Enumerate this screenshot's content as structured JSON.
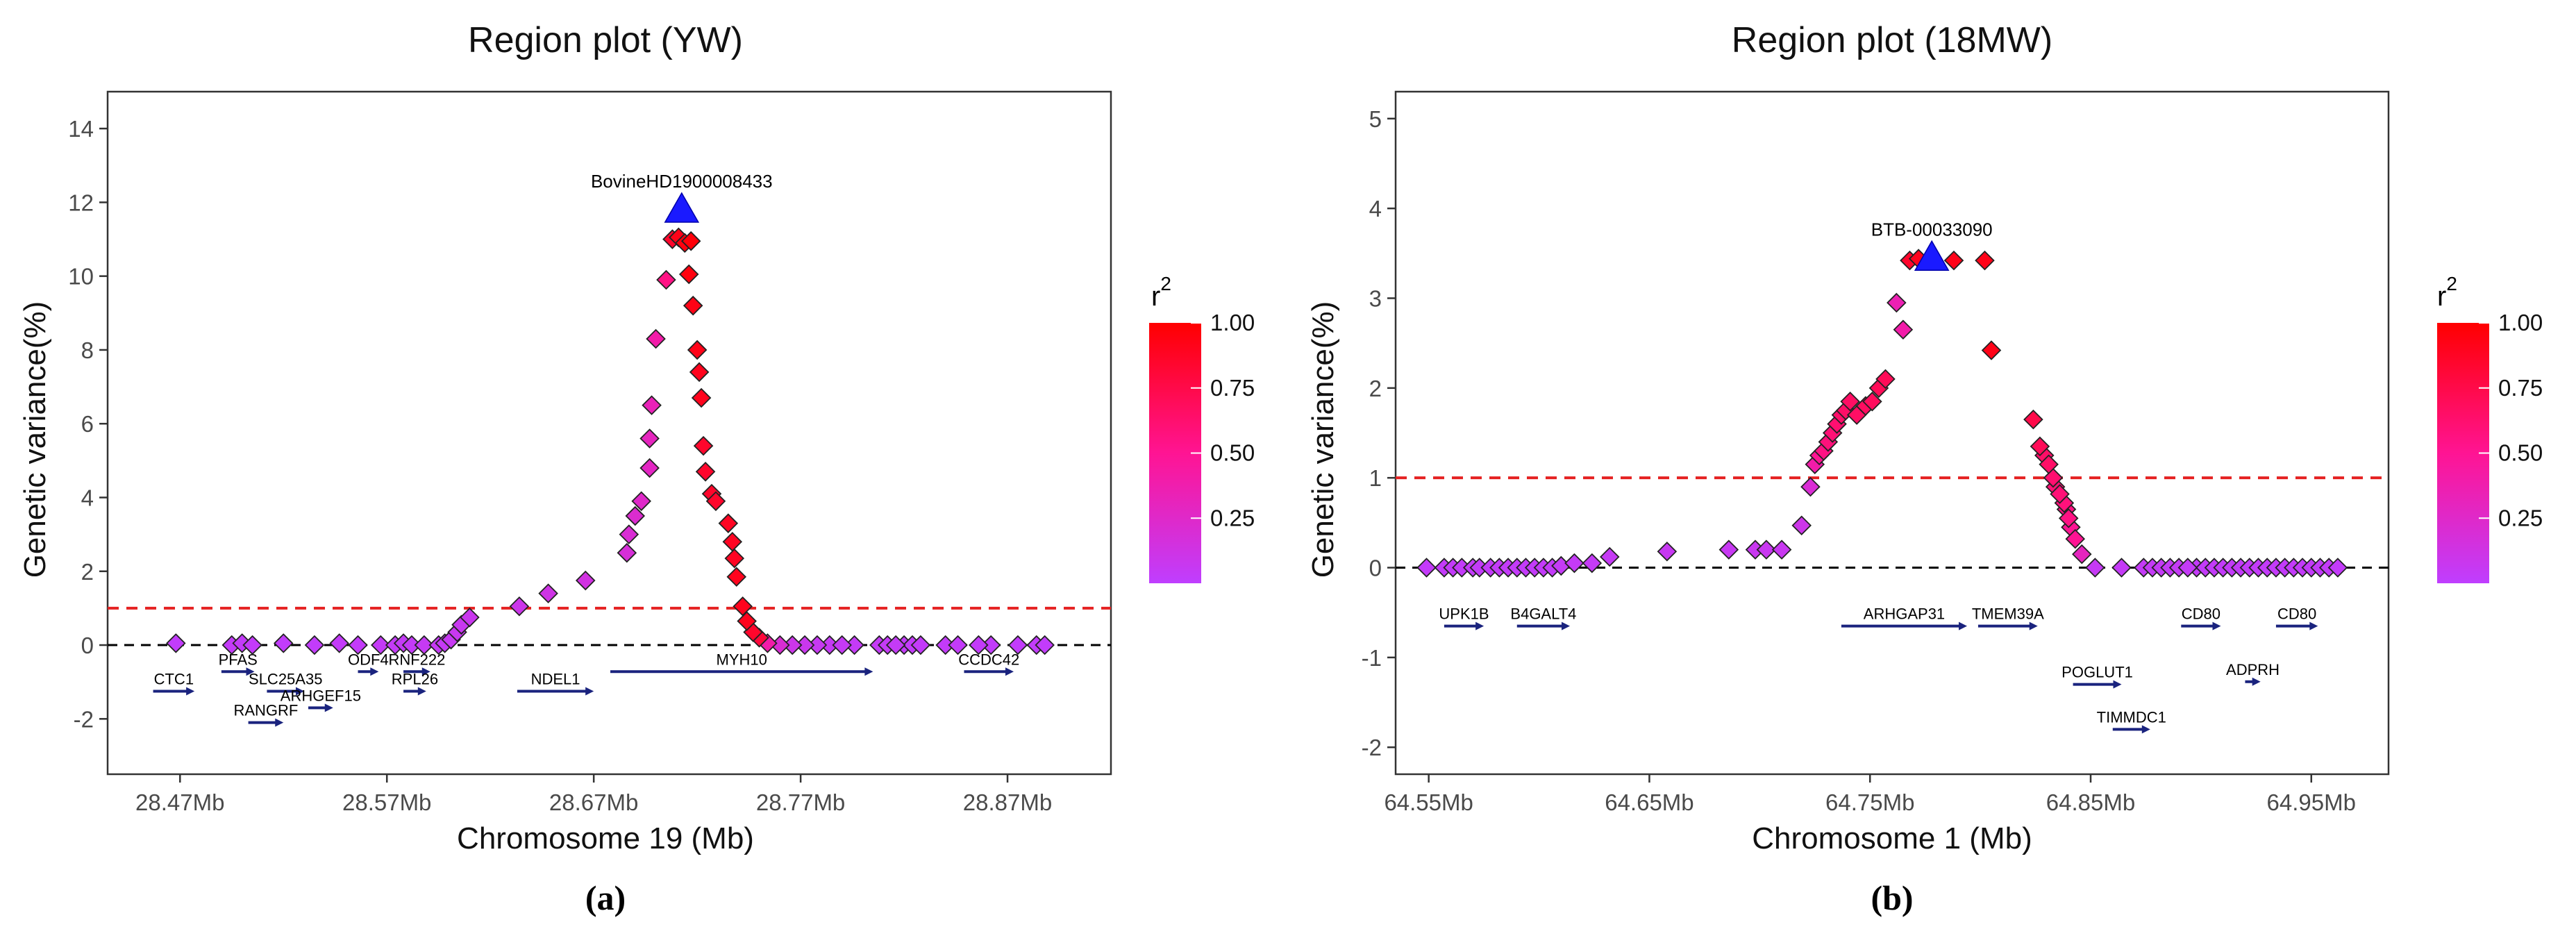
{
  "colors": {
    "low_r2": "#bf3eff",
    "high_r2": "#ff0000",
    "lead_snp": "#1a1aff",
    "threshold_line": "#e52222",
    "baseline": "#000000",
    "gene_arrow": "#1a237e",
    "marker_edge": "#222222"
  },
  "chart_data": [
    {
      "type": "scatter",
      "panel_label": "(a)",
      "title": "Region plot (YW)",
      "xlabel": "Chromosome 19 (Mb)",
      "ylabel": "Genetic variance(%)",
      "xlim": [
        28.435,
        28.92
      ],
      "ylim": [
        -3.5,
        15
      ],
      "x_ticks": [
        28.47,
        28.57,
        28.67,
        28.77,
        28.87
      ],
      "x_tick_labels": [
        "28.47Mb",
        "28.57Mb",
        "28.67Mb",
        "28.77Mb",
        "28.87Mb"
      ],
      "y_ticks": [
        -2,
        0,
        2,
        4,
        6,
        8,
        10,
        12,
        14
      ],
      "y_tick_labels": [
        "-2",
        "0",
        "2",
        "4",
        "6",
        "8",
        "10",
        "12",
        "14"
      ],
      "threshold": 1,
      "baseline": 0,
      "lead_snp": {
        "name": "BovineHD1900008433",
        "x": 28.7125,
        "y": 11.8
      },
      "points": [
        {
          "x": 28.468,
          "y": 0.05,
          "r2": 0.02
        },
        {
          "x": 28.495,
          "y": 0.0,
          "r2": 0.03
        },
        {
          "x": 28.5,
          "y": 0.05,
          "r2": 0.03
        },
        {
          "x": 28.505,
          "y": 0.0,
          "r2": 0.03
        },
        {
          "x": 28.52,
          "y": 0.05,
          "r2": 0.02
        },
        {
          "x": 28.535,
          "y": 0.0,
          "r2": 0.02
        },
        {
          "x": 28.547,
          "y": 0.05,
          "r2": 0.03
        },
        {
          "x": 28.556,
          "y": 0.0,
          "r2": 0.03
        },
        {
          "x": 28.567,
          "y": 0.0,
          "r2": 0.04
        },
        {
          "x": 28.574,
          "y": 0.0,
          "r2": 0.04
        },
        {
          "x": 28.578,
          "y": 0.05,
          "r2": 0.04
        },
        {
          "x": 28.582,
          "y": 0.0,
          "r2": 0.04
        },
        {
          "x": 28.588,
          "y": 0.0,
          "r2": 0.05
        },
        {
          "x": 28.595,
          "y": 0.0,
          "r2": 0.05
        },
        {
          "x": 28.598,
          "y": 0.05,
          "r2": 0.05
        },
        {
          "x": 28.601,
          "y": 0.15,
          "r2": 0.06
        },
        {
          "x": 28.604,
          "y": 0.35,
          "r2": 0.07
        },
        {
          "x": 28.606,
          "y": 0.55,
          "r2": 0.07
        },
        {
          "x": 28.61,
          "y": 0.75,
          "r2": 0.08
        },
        {
          "x": 28.634,
          "y": 1.05,
          "r2": 0.1
        },
        {
          "x": 28.648,
          "y": 1.4,
          "r2": 0.12
        },
        {
          "x": 28.666,
          "y": 1.75,
          "r2": 0.14
        },
        {
          "x": 28.686,
          "y": 2.5,
          "r2": 0.18
        },
        {
          "x": 28.687,
          "y": 3.0,
          "r2": 0.2
        },
        {
          "x": 28.69,
          "y": 3.5,
          "r2": 0.22
        },
        {
          "x": 28.693,
          "y": 3.9,
          "r2": 0.25
        },
        {
          "x": 28.697,
          "y": 4.8,
          "r2": 0.28
        },
        {
          "x": 28.697,
          "y": 5.6,
          "r2": 0.3
        },
        {
          "x": 28.698,
          "y": 6.5,
          "r2": 0.33
        },
        {
          "x": 28.7,
          "y": 8.3,
          "r2": 0.4
        },
        {
          "x": 28.705,
          "y": 9.9,
          "r2": 0.55
        },
        {
          "x": 28.708,
          "y": 11.0,
          "r2": 0.85
        },
        {
          "x": 28.711,
          "y": 11.05,
          "r2": 0.92
        },
        {
          "x": 28.714,
          "y": 10.9,
          "r2": 0.95
        },
        {
          "x": 28.717,
          "y": 10.95,
          "r2": 0.97
        },
        {
          "x": 28.716,
          "y": 10.05,
          "r2": 0.95
        },
        {
          "x": 28.718,
          "y": 9.2,
          "r2": 0.93
        },
        {
          "x": 28.72,
          "y": 8.0,
          "r2": 0.92
        },
        {
          "x": 28.721,
          "y": 7.4,
          "r2": 0.9
        },
        {
          "x": 28.722,
          "y": 6.7,
          "r2": 0.9
        },
        {
          "x": 28.723,
          "y": 5.4,
          "r2": 0.85
        },
        {
          "x": 28.724,
          "y": 4.7,
          "r2": 0.85
        },
        {
          "x": 28.727,
          "y": 4.1,
          "r2": 0.85
        },
        {
          "x": 28.729,
          "y": 3.9,
          "r2": 0.85
        },
        {
          "x": 28.735,
          "y": 3.3,
          "r2": 0.88
        },
        {
          "x": 28.737,
          "y": 2.8,
          "r2": 0.88
        },
        {
          "x": 28.738,
          "y": 2.35,
          "r2": 0.88
        },
        {
          "x": 28.739,
          "y": 1.85,
          "r2": 0.9
        },
        {
          "x": 28.742,
          "y": 1.05,
          "r2": 0.9
        },
        {
          "x": 28.744,
          "y": 0.65,
          "r2": 0.9
        },
        {
          "x": 28.747,
          "y": 0.35,
          "r2": 0.85
        },
        {
          "x": 28.75,
          "y": 0.2,
          "r2": 0.8
        },
        {
          "x": 28.754,
          "y": 0.05,
          "r2": 0.4
        },
        {
          "x": 28.76,
          "y": 0.0,
          "r2": 0.2
        },
        {
          "x": 28.766,
          "y": 0.0,
          "r2": 0.1
        },
        {
          "x": 28.772,
          "y": 0.0,
          "r2": 0.08
        },
        {
          "x": 28.778,
          "y": 0.0,
          "r2": 0.06
        },
        {
          "x": 28.784,
          "y": 0.0,
          "r2": 0.05
        },
        {
          "x": 28.79,
          "y": 0.0,
          "r2": 0.05
        },
        {
          "x": 28.796,
          "y": 0.0,
          "r2": 0.04
        },
        {
          "x": 28.808,
          "y": 0.0,
          "r2": 0.04
        },
        {
          "x": 28.812,
          "y": 0.0,
          "r2": 0.04
        },
        {
          "x": 28.816,
          "y": 0.0,
          "r2": 0.04
        },
        {
          "x": 28.82,
          "y": 0.0,
          "r2": 0.03
        },
        {
          "x": 28.824,
          "y": 0.0,
          "r2": 0.03
        },
        {
          "x": 28.828,
          "y": 0.0,
          "r2": 0.03
        },
        {
          "x": 28.84,
          "y": 0.0,
          "r2": 0.03
        },
        {
          "x": 28.846,
          "y": 0.0,
          "r2": 0.03
        },
        {
          "x": 28.856,
          "y": 0.0,
          "r2": 0.03
        },
        {
          "x": 28.862,
          "y": 0.0,
          "r2": 0.02
        },
        {
          "x": 28.875,
          "y": 0.0,
          "r2": 0.02
        },
        {
          "x": 28.884,
          "y": 0.0,
          "r2": 0.02
        },
        {
          "x": 28.888,
          "y": 0.0,
          "r2": 0.02
        }
      ],
      "genes": [
        {
          "name": "CTC1",
          "start": 28.457,
          "end": 28.477,
          "y": -1.25
        },
        {
          "name": "PFAS",
          "start": 28.49,
          "end": 28.506,
          "y": -0.72
        },
        {
          "name": "SLC25A35",
          "start": 28.512,
          "end": 28.53,
          "y": -1.25
        },
        {
          "name": "RANGRF",
          "start": 28.503,
          "end": 28.52,
          "y": -2.1
        },
        {
          "name": "ARHGEF15",
          "start": 28.532,
          "end": 28.544,
          "y": -1.7
        },
        {
          "name": "ODF4",
          "start": 28.556,
          "end": 28.566,
          "y": -0.72
        },
        {
          "name": "RNF222",
          "start": 28.578,
          "end": 28.591,
          "y": -0.72
        },
        {
          "name": "RPL26",
          "start": 28.578,
          "end": 28.589,
          "y": -1.25
        },
        {
          "name": "NDEL1",
          "start": 28.633,
          "end": 28.67,
          "y": -1.25
        },
        {
          "name": "MYH10",
          "start": 28.678,
          "end": 28.805,
          "y": -0.72
        },
        {
          "name": "CCDC42",
          "start": 28.849,
          "end": 28.873,
          "y": -0.72
        }
      ],
      "legend": {
        "title": "r",
        "title_sup": "2",
        "ticks": [
          0.25,
          0.5,
          0.75,
          1.0
        ],
        "tick_labels": [
          "0.25",
          "0.50",
          "0.75",
          "1.00"
        ]
      }
    },
    {
      "type": "scatter",
      "panel_label": "(b)",
      "title": "Region plot (18MW)",
      "xlabel": "Chromosome 1 (Mb)",
      "ylabel": "Genetic variance(%)",
      "xlim": [
        64.535,
        64.985
      ],
      "ylim": [
        -2.3,
        5.3
      ],
      "x_ticks": [
        64.55,
        64.65,
        64.75,
        64.85,
        64.95
      ],
      "x_tick_labels": [
        "64.55Mb",
        "64.65Mb",
        "64.75Mb",
        "64.85Mb",
        "64.95Mb"
      ],
      "y_ticks": [
        -2,
        -1,
        0,
        1,
        2,
        3,
        4,
        5
      ],
      "y_tick_labels": [
        "-2",
        "-1",
        "0",
        "1",
        "2",
        "3",
        "4",
        "5"
      ],
      "threshold": 1,
      "baseline": 0,
      "lead_snp": {
        "name": "BTB-00033090",
        "x": 64.778,
        "y": 3.45
      },
      "points": [
        {
          "x": 64.549,
          "y": 0.0,
          "r2": 0.03
        },
        {
          "x": 64.557,
          "y": 0.0,
          "r2": 0.03
        },
        {
          "x": 64.561,
          "y": 0.0,
          "r2": 0.03
        },
        {
          "x": 64.565,
          "y": 0.0,
          "r2": 0.03
        },
        {
          "x": 64.57,
          "y": 0.0,
          "r2": 0.03
        },
        {
          "x": 64.573,
          "y": 0.0,
          "r2": 0.03
        },
        {
          "x": 64.578,
          "y": 0.0,
          "r2": 0.03
        },
        {
          "x": 64.582,
          "y": 0.0,
          "r2": 0.03
        },
        {
          "x": 64.586,
          "y": 0.0,
          "r2": 0.03
        },
        {
          "x": 64.59,
          "y": 0.0,
          "r2": 0.03
        },
        {
          "x": 64.594,
          "y": 0.0,
          "r2": 0.03
        },
        {
          "x": 64.598,
          "y": 0.0,
          "r2": 0.03
        },
        {
          "x": 64.602,
          "y": 0.0,
          "r2": 0.03
        },
        {
          "x": 64.606,
          "y": 0.0,
          "r2": 0.03
        },
        {
          "x": 64.61,
          "y": 0.02,
          "r2": 0.04
        },
        {
          "x": 64.616,
          "y": 0.05,
          "r2": 0.04
        },
        {
          "x": 64.624,
          "y": 0.05,
          "r2": 0.04
        },
        {
          "x": 64.632,
          "y": 0.12,
          "r2": 0.05
        },
        {
          "x": 64.658,
          "y": 0.18,
          "r2": 0.06
        },
        {
          "x": 64.686,
          "y": 0.2,
          "r2": 0.06
        },
        {
          "x": 64.698,
          "y": 0.2,
          "r2": 0.07
        },
        {
          "x": 64.703,
          "y": 0.2,
          "r2": 0.07
        },
        {
          "x": 64.71,
          "y": 0.2,
          "r2": 0.07
        },
        {
          "x": 64.719,
          "y": 0.47,
          "r2": 0.1
        },
        {
          "x": 64.723,
          "y": 0.9,
          "r2": 0.2
        },
        {
          "x": 64.725,
          "y": 1.15,
          "r2": 0.4
        },
        {
          "x": 64.727,
          "y": 1.25,
          "r2": 0.5
        },
        {
          "x": 64.729,
          "y": 1.3,
          "r2": 0.55
        },
        {
          "x": 64.731,
          "y": 1.4,
          "r2": 0.58
        },
        {
          "x": 64.733,
          "y": 1.5,
          "r2": 0.6
        },
        {
          "x": 64.735,
          "y": 1.6,
          "r2": 0.62
        },
        {
          "x": 64.737,
          "y": 1.7,
          "r2": 0.64
        },
        {
          "x": 64.739,
          "y": 1.75,
          "r2": 0.65
        },
        {
          "x": 64.741,
          "y": 1.85,
          "r2": 0.66
        },
        {
          "x": 64.744,
          "y": 1.7,
          "r2": 0.66
        },
        {
          "x": 64.748,
          "y": 1.8,
          "r2": 0.67
        },
        {
          "x": 64.751,
          "y": 1.85,
          "r2": 0.68
        },
        {
          "x": 64.754,
          "y": 2.0,
          "r2": 0.7
        },
        {
          "x": 64.757,
          "y": 2.1,
          "r2": 0.7
        },
        {
          "x": 64.762,
          "y": 2.95,
          "r2": 0.35
        },
        {
          "x": 64.765,
          "y": 2.65,
          "r2": 0.4
        },
        {
          "x": 64.768,
          "y": 3.42,
          "r2": 0.85
        },
        {
          "x": 64.772,
          "y": 3.44,
          "r2": 0.9
        },
        {
          "x": 64.788,
          "y": 3.42,
          "r2": 0.92
        },
        {
          "x": 64.802,
          "y": 3.42,
          "r2": 0.92
        },
        {
          "x": 64.805,
          "y": 2.42,
          "r2": 0.92
        },
        {
          "x": 64.824,
          "y": 1.65,
          "r2": 0.75
        },
        {
          "x": 64.827,
          "y": 1.35,
          "r2": 0.7
        },
        {
          "x": 64.829,
          "y": 1.25,
          "r2": 0.65
        },
        {
          "x": 64.831,
          "y": 1.15,
          "r2": 0.65
        },
        {
          "x": 64.833,
          "y": 1.0,
          "r2": 0.62
        },
        {
          "x": 64.834,
          "y": 0.9,
          "r2": 0.6
        },
        {
          "x": 64.836,
          "y": 0.82,
          "r2": 0.6
        },
        {
          "x": 64.838,
          "y": 0.72,
          "r2": 0.58
        },
        {
          "x": 64.839,
          "y": 0.65,
          "r2": 0.55
        },
        {
          "x": 64.84,
          "y": 0.55,
          "r2": 0.55
        },
        {
          "x": 64.841,
          "y": 0.45,
          "r2": 0.5
        },
        {
          "x": 64.843,
          "y": 0.32,
          "r2": 0.5
        },
        {
          "x": 64.846,
          "y": 0.15,
          "r2": 0.3
        },
        {
          "x": 64.852,
          "y": 0.0,
          "r2": 0.05
        },
        {
          "x": 64.864,
          "y": 0.0,
          "r2": 0.04
        },
        {
          "x": 64.874,
          "y": 0.0,
          "r2": 0.04
        },
        {
          "x": 64.878,
          "y": 0.0,
          "r2": 0.04
        },
        {
          "x": 64.882,
          "y": 0.0,
          "r2": 0.04
        },
        {
          "x": 64.886,
          "y": 0.0,
          "r2": 0.04
        },
        {
          "x": 64.89,
          "y": 0.0,
          "r2": 0.04
        },
        {
          "x": 64.894,
          "y": 0.0,
          "r2": 0.04
        },
        {
          "x": 64.898,
          "y": 0.0,
          "r2": 0.03
        },
        {
          "x": 64.902,
          "y": 0.0,
          "r2": 0.03
        },
        {
          "x": 64.906,
          "y": 0.0,
          "r2": 0.03
        },
        {
          "x": 64.91,
          "y": 0.0,
          "r2": 0.03
        },
        {
          "x": 64.914,
          "y": 0.0,
          "r2": 0.03
        },
        {
          "x": 64.918,
          "y": 0.0,
          "r2": 0.03
        },
        {
          "x": 64.922,
          "y": 0.0,
          "r2": 0.03
        },
        {
          "x": 64.926,
          "y": 0.0,
          "r2": 0.03
        },
        {
          "x": 64.93,
          "y": 0.0,
          "r2": 0.03
        },
        {
          "x": 64.934,
          "y": 0.0,
          "r2": 0.03
        },
        {
          "x": 64.938,
          "y": 0.0,
          "r2": 0.03
        },
        {
          "x": 64.942,
          "y": 0.0,
          "r2": 0.03
        },
        {
          "x": 64.946,
          "y": 0.0,
          "r2": 0.03
        },
        {
          "x": 64.95,
          "y": 0.0,
          "r2": 0.03
        },
        {
          "x": 64.954,
          "y": 0.0,
          "r2": 0.03
        },
        {
          "x": 64.958,
          "y": 0.0,
          "r2": 0.03
        },
        {
          "x": 64.962,
          "y": 0.0,
          "r2": 0.03
        }
      ],
      "genes": [
        {
          "name": "UPK1B",
          "start": 64.557,
          "end": 64.575,
          "y": -0.65
        },
        {
          "name": "B4GALT4",
          "start": 64.59,
          "end": 64.614,
          "y": -0.65
        },
        {
          "name": "ARHGAP31",
          "start": 64.737,
          "end": 64.794,
          "y": -0.65
        },
        {
          "name": "TMEM39A",
          "start": 64.799,
          "end": 64.826,
          "y": -0.65
        },
        {
          "name": "POGLUT1",
          "start": 64.842,
          "end": 64.864,
          "y": -1.3
        },
        {
          "name": "TIMMDC1",
          "start": 64.86,
          "end": 64.877,
          "y": -1.8
        },
        {
          "name": "CD80",
          "start": 64.891,
          "end": 64.909,
          "y": -0.65
        },
        {
          "name": "ADPRH",
          "start": 64.92,
          "end": 64.927,
          "y": -1.27
        },
        {
          "name": "CD80",
          "start": 64.934,
          "end": 64.953,
          "y": -0.65
        }
      ],
      "legend": {
        "title": "r",
        "title_sup": "2",
        "ticks": [
          0.25,
          0.5,
          0.75,
          1.0
        ],
        "tick_labels": [
          "0.25",
          "0.50",
          "0.75",
          "1.00"
        ]
      }
    }
  ]
}
